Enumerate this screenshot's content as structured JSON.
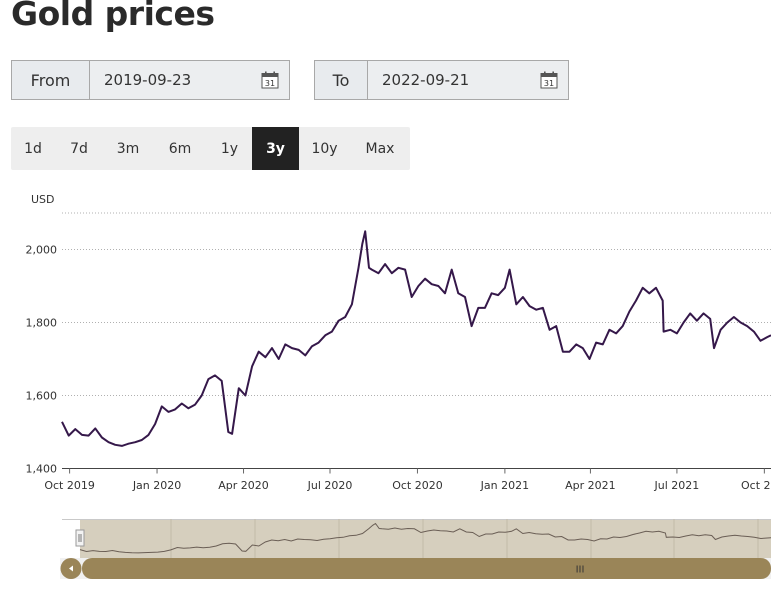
{
  "page": {
    "title": "Gold prices"
  },
  "range": {
    "from_label": "From",
    "from_value": "2019-09-23",
    "to_label": "To",
    "to_value": "2022-09-21",
    "calendar_icon": "calendar-icon",
    "calendar_day": "31"
  },
  "zoom_buttons": [
    {
      "label": "1d"
    },
    {
      "label": "7d"
    },
    {
      "label": "3m"
    },
    {
      "label": "6m"
    },
    {
      "label": "1y"
    },
    {
      "label": "3y",
      "active": true
    },
    {
      "label": "10y"
    },
    {
      "label": "Max"
    }
  ],
  "colors": {
    "line": "#35184a",
    "navigator_bg": "#d6cfbe",
    "scrollbar": "#9a8558",
    "active_button": "#222222"
  },
  "navigator": {
    "handle_icon": "grip-icon",
    "left_arrow_icon": "arrow-left-icon",
    "thumb_grip": "III"
  },
  "chart_data": {
    "type": "line",
    "ylabel": "USD",
    "ylim": [
      1400,
      2100
    ],
    "yticks": [
      1400,
      1600,
      1800,
      2000
    ],
    "ytick_labels": [
      "1,400",
      "1,600",
      "1,800",
      "2,000"
    ],
    "x_tick_labels": [
      "Oct 2019",
      "Jan 2020",
      "Apr 2020",
      "Jul 2020",
      "Oct 2020",
      "Jan 2021",
      "Apr 2021",
      "Jul 2021",
      "Oct 2"
    ],
    "grid": true,
    "series": [
      {
        "values": [
          [
            "2019-09-23",
            1528
          ],
          [
            "2019-09-30",
            1490
          ],
          [
            "2019-10-07",
            1508
          ],
          [
            "2019-10-14",
            1492
          ],
          [
            "2019-10-21",
            1490
          ],
          [
            "2019-10-28",
            1510
          ],
          [
            "2019-11-04",
            1485
          ],
          [
            "2019-11-11",
            1472
          ],
          [
            "2019-11-18",
            1465
          ],
          [
            "2019-11-25",
            1462
          ],
          [
            "2019-12-02",
            1468
          ],
          [
            "2019-12-09",
            1472
          ],
          [
            "2019-12-16",
            1478
          ],
          [
            "2019-12-23",
            1492
          ],
          [
            "2019-12-30",
            1522
          ],
          [
            "2020-01-06",
            1570
          ],
          [
            "2020-01-13",
            1555
          ],
          [
            "2020-01-20",
            1562
          ],
          [
            "2020-01-27",
            1578
          ],
          [
            "2020-02-03",
            1565
          ],
          [
            "2020-02-10",
            1575
          ],
          [
            "2020-02-17",
            1600
          ],
          [
            "2020-02-24",
            1645
          ],
          [
            "2020-03-02",
            1655
          ],
          [
            "2020-03-09",
            1640
          ],
          [
            "2020-03-16",
            1500
          ],
          [
            "2020-03-20",
            1495
          ],
          [
            "2020-03-27",
            1620
          ],
          [
            "2020-04-03",
            1600
          ],
          [
            "2020-04-10",
            1680
          ],
          [
            "2020-04-17",
            1720
          ],
          [
            "2020-04-24",
            1705
          ],
          [
            "2020-05-01",
            1730
          ],
          [
            "2020-05-08",
            1700
          ],
          [
            "2020-05-15",
            1740
          ],
          [
            "2020-05-22",
            1730
          ],
          [
            "2020-05-29",
            1725
          ],
          [
            "2020-06-05",
            1710
          ],
          [
            "2020-06-12",
            1735
          ],
          [
            "2020-06-19",
            1745
          ],
          [
            "2020-06-26",
            1765
          ],
          [
            "2020-07-03",
            1775
          ],
          [
            "2020-07-10",
            1805
          ],
          [
            "2020-07-17",
            1815
          ],
          [
            "2020-07-24",
            1850
          ],
          [
            "2020-07-31",
            1950
          ],
          [
            "2020-08-04",
            2015
          ],
          [
            "2020-08-07",
            2050
          ],
          [
            "2020-08-11",
            1950
          ],
          [
            "2020-08-14",
            1945
          ],
          [
            "2020-08-21",
            1935
          ],
          [
            "2020-08-28",
            1960
          ],
          [
            "2020-09-04",
            1935
          ],
          [
            "2020-09-11",
            1950
          ],
          [
            "2020-09-18",
            1945
          ],
          [
            "2020-09-25",
            1870
          ],
          [
            "2020-10-02",
            1900
          ],
          [
            "2020-10-09",
            1920
          ],
          [
            "2020-10-16",
            1905
          ],
          [
            "2020-10-23",
            1900
          ],
          [
            "2020-10-30",
            1880
          ],
          [
            "2020-11-06",
            1945
          ],
          [
            "2020-11-13",
            1880
          ],
          [
            "2020-11-20",
            1870
          ],
          [
            "2020-11-27",
            1790
          ],
          [
            "2020-12-04",
            1840
          ],
          [
            "2020-12-11",
            1840
          ],
          [
            "2020-12-18",
            1880
          ],
          [
            "2020-12-25",
            1875
          ],
          [
            "2021-01-01",
            1895
          ],
          [
            "2021-01-06",
            1945
          ],
          [
            "2021-01-13",
            1850
          ],
          [
            "2021-01-20",
            1870
          ],
          [
            "2021-01-27",
            1845
          ],
          [
            "2021-02-03",
            1835
          ],
          [
            "2021-02-10",
            1840
          ],
          [
            "2021-02-17",
            1780
          ],
          [
            "2021-02-24",
            1790
          ],
          [
            "2021-03-03",
            1720
          ],
          [
            "2021-03-10",
            1720
          ],
          [
            "2021-03-17",
            1740
          ],
          [
            "2021-03-24",
            1730
          ],
          [
            "2021-03-31",
            1700
          ],
          [
            "2021-04-07",
            1745
          ],
          [
            "2021-04-14",
            1740
          ],
          [
            "2021-04-21",
            1780
          ],
          [
            "2021-04-28",
            1770
          ],
          [
            "2021-05-05",
            1790
          ],
          [
            "2021-05-12",
            1830
          ],
          [
            "2021-05-19",
            1860
          ],
          [
            "2021-05-26",
            1895
          ],
          [
            "2021-06-02",
            1880
          ],
          [
            "2021-06-09",
            1895
          ],
          [
            "2021-06-16",
            1860
          ],
          [
            "2021-06-17",
            1775
          ],
          [
            "2021-06-24",
            1780
          ],
          [
            "2021-07-01",
            1770
          ],
          [
            "2021-07-08",
            1800
          ],
          [
            "2021-07-15",
            1825
          ],
          [
            "2021-07-22",
            1805
          ],
          [
            "2021-07-29",
            1825
          ],
          [
            "2021-08-05",
            1810
          ],
          [
            "2021-08-09",
            1730
          ],
          [
            "2021-08-16",
            1780
          ],
          [
            "2021-08-23",
            1800
          ],
          [
            "2021-08-30",
            1815
          ],
          [
            "2021-09-06",
            1800
          ],
          [
            "2021-09-13",
            1790
          ],
          [
            "2021-09-20",
            1775
          ],
          [
            "2021-09-27",
            1750
          ],
          [
            "2021-10-04",
            1760
          ],
          [
            "2021-10-08",
            1765
          ]
        ]
      }
    ]
  }
}
